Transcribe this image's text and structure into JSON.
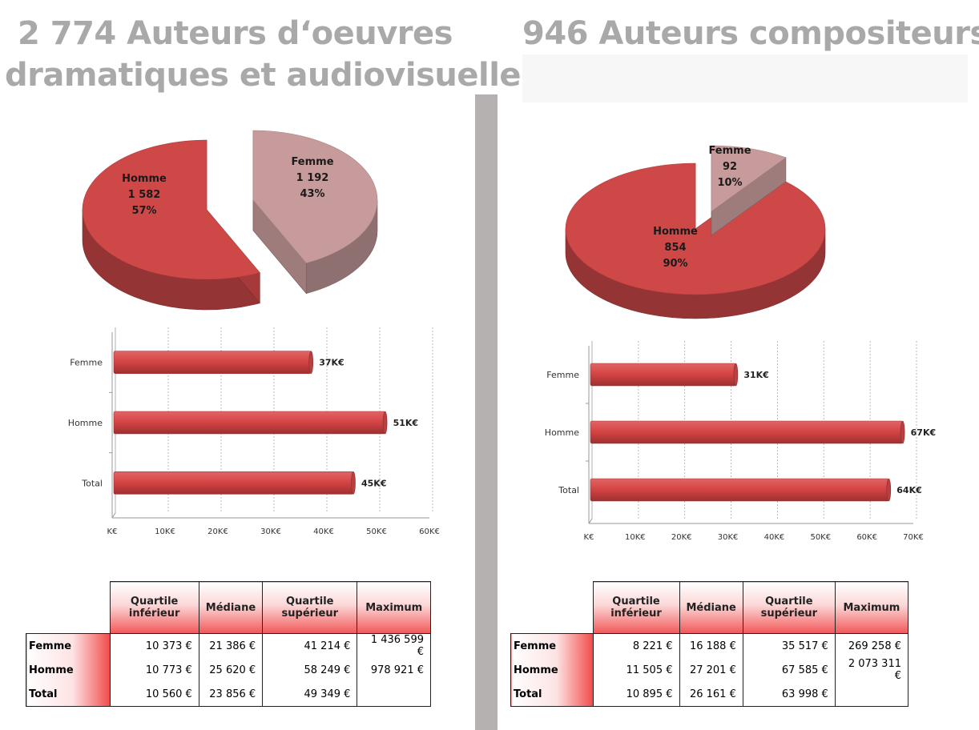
{
  "left_title_line1": "2 774 Auteurs d‘oeuvres",
  "left_title_line2": "dramatiques et audiovisuelles",
  "right_title": "946 Auteurs compositeurs",
  "colors": {
    "homme": "#cf4848",
    "femme": "#c79b9b",
    "bar": "#d64545",
    "title": "#a9a9a9",
    "divider": "#b5b1b1"
  },
  "chart_data": [
    {
      "type": "pie",
      "slices": [
        {
          "label": "Homme",
          "count": "1 582",
          "percent": "57%",
          "value": 1582
        },
        {
          "label": "Femme",
          "count": "1 192",
          "percent": "43%",
          "value": 1192
        }
      ]
    },
    {
      "type": "bar",
      "orientation": "horizontal",
      "categories": [
        "Femme",
        "Homme",
        "Total"
      ],
      "values": [
        37,
        51,
        45
      ],
      "value_labels": [
        "37K€",
        "51K€",
        "45K€"
      ],
      "x_ticks": [
        "K€",
        "10K€",
        "20K€",
        "30K€",
        "40K€",
        "50K€",
        "60K€"
      ],
      "xlim": [
        0,
        60
      ],
      "grid": true
    },
    {
      "type": "pie",
      "slices": [
        {
          "label": "Homme",
          "count": "854",
          "percent": "90%",
          "value": 854
        },
        {
          "label": "Femme",
          "count": "92",
          "percent": "10%",
          "value": 92
        }
      ]
    },
    {
      "type": "bar",
      "orientation": "horizontal",
      "categories": [
        "Femme",
        "Homme",
        "Total"
      ],
      "values": [
        31,
        67,
        64
      ],
      "value_labels": [
        "31K€",
        "67K€",
        "64K€"
      ],
      "x_ticks": [
        "K€",
        "10K€",
        "20K€",
        "30K€",
        "40K€",
        "50K€",
        "60K€",
        "70K€"
      ],
      "xlim": [
        0,
        70
      ],
      "grid": true
    }
  ],
  "tables": [
    {
      "headers": [
        "Quartile inférieur",
        "Médiane",
        "Quartile supérieur",
        "Maximum"
      ],
      "rows": [
        {
          "label": "Femme",
          "cells": [
            "10 373 €",
            "21 386 €",
            "41 214 €",
            "1 436 599 €"
          ]
        },
        {
          "label": "Homme",
          "cells": [
            "10 773 €",
            "25 620 €",
            "58 249 €",
            "978 921 €"
          ]
        },
        {
          "label": "Total",
          "cells": [
            "10 560 €",
            "23 856 €",
            "49 349 €",
            ""
          ]
        }
      ]
    },
    {
      "headers": [
        "Quartile inférieur",
        "Médiane",
        "Quartile supérieur",
        "Maximum"
      ],
      "rows": [
        {
          "label": "Femme",
          "cells": [
            "8 221 €",
            "16 188 €",
            "35 517 €",
            "269 258 €"
          ]
        },
        {
          "label": "Homme",
          "cells": [
            "11 505 €",
            "27 201 €",
            "67 585 €",
            "2 073 311 €"
          ]
        },
        {
          "label": "Total",
          "cells": [
            "10 895 €",
            "26 161 €",
            "63 998 €",
            ""
          ]
        }
      ]
    }
  ]
}
